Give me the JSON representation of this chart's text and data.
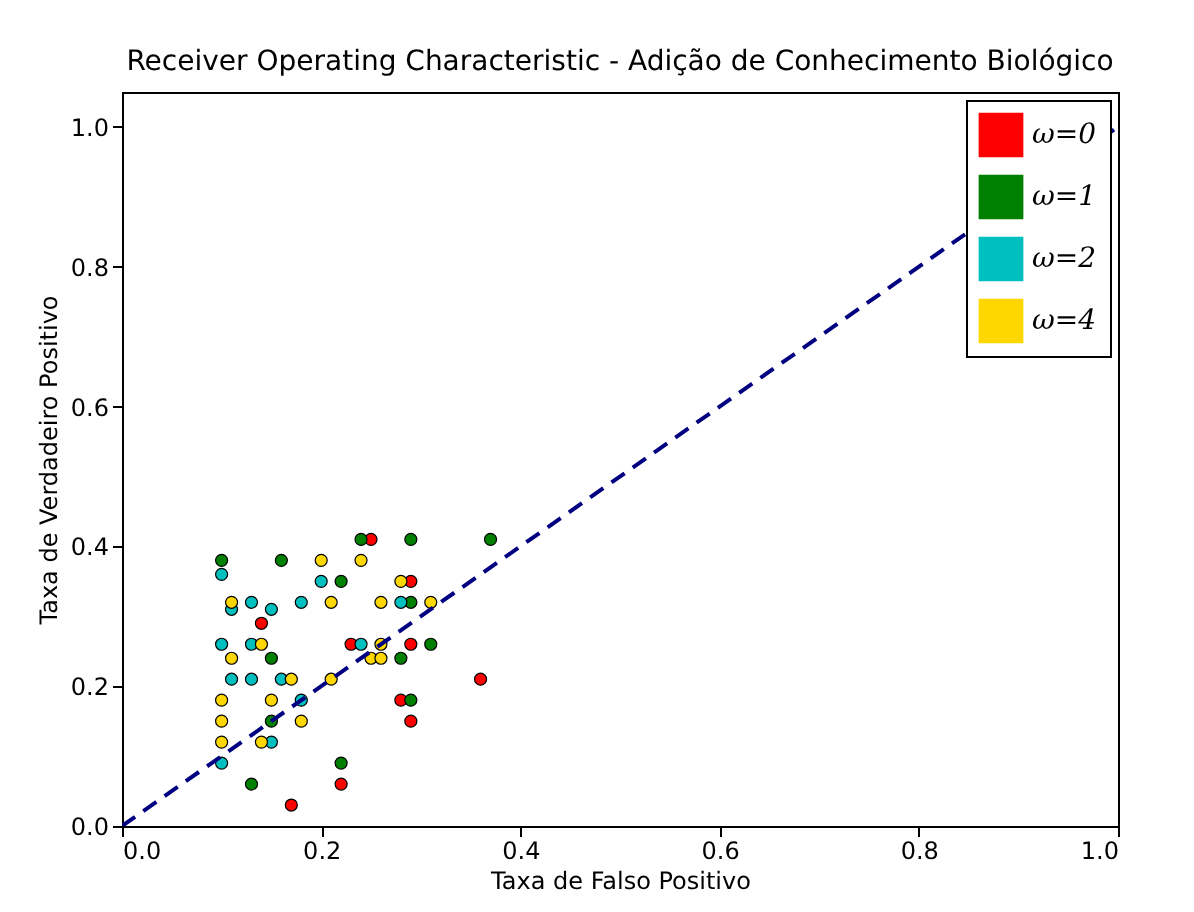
{
  "chart_data": {
    "type": "scatter",
    "title": "Receiver Operating Characteristic - Adição de Conhecimento Biológico",
    "xlabel": "Taxa de Falso Positivo",
    "ylabel": "Taxa de Verdadeiro Positivo",
    "xlim": [
      0,
      1
    ],
    "ylim": [
      0,
      1.05
    ],
    "xticks": [
      {
        "value": 0,
        "label": "0.0"
      },
      0.2,
      0.4,
      0.6,
      0.8,
      {
        "value": 1,
        "label": "1.0"
      }
    ],
    "yticks": [
      {
        "value": 0,
        "label": "0.0"
      },
      0.2,
      0.4,
      0.6,
      0.8,
      {
        "value": 1,
        "label": "1.0"
      }
    ],
    "grid": false,
    "legend": "top right",
    "marker": "circle",
    "series": [
      {
        "name": "ω=0",
        "color": "#ff0000",
        "x": [
          0.25,
          0.14,
          0.23,
          0.17,
          0.22,
          0.29,
          0.29,
          0.36,
          0.28,
          0.29
        ],
        "values": [
          0.41,
          0.29,
          0.26,
          0.03,
          0.06,
          0.35,
          0.26,
          0.21,
          0.18,
          0.15
        ]
      },
      {
        "name": "ω=1",
        "color": "#008000",
        "x": [
          0.24,
          0.1,
          0.16,
          0.22,
          0.15,
          0.15,
          0.22,
          0.13,
          0.29,
          0.37,
          0.29,
          0.31,
          0.28,
          0.29
        ],
        "values": [
          0.41,
          0.38,
          0.38,
          0.35,
          0.24,
          0.15,
          0.09,
          0.06,
          0.41,
          0.41,
          0.32,
          0.26,
          0.24,
          0.18
        ]
      },
      {
        "name": "ω=2",
        "color": "#00bfbf",
        "x": [
          0.1,
          0.2,
          0.11,
          0.13,
          0.15,
          0.18,
          0.1,
          0.13,
          0.24,
          0.11,
          0.13,
          0.16,
          0.18,
          0.15,
          0.1,
          0.28
        ],
        "values": [
          0.36,
          0.35,
          0.31,
          0.32,
          0.31,
          0.32,
          0.26,
          0.26,
          0.26,
          0.21,
          0.21,
          0.21,
          0.18,
          0.12,
          0.09,
          0.32
        ]
      },
      {
        "name": "ω=4",
        "color": "#ffd700",
        "x": [
          0.2,
          0.24,
          0.11,
          0.21,
          0.26,
          0.14,
          0.26,
          0.11,
          0.25,
          0.26,
          0.17,
          0.21,
          0.1,
          0.15,
          0.1,
          0.18,
          0.1,
          0.14,
          0.28,
          0.31
        ],
        "values": [
          0.38,
          0.38,
          0.32,
          0.32,
          0.32,
          0.26,
          0.26,
          0.24,
          0.24,
          0.24,
          0.21,
          0.21,
          0.18,
          0.18,
          0.15,
          0.15,
          0.12,
          0.12,
          0.35,
          0.32
        ]
      },
      {
        "type": "line",
        "color": "#000080",
        "line_style": "dashed",
        "marker": "none",
        "x": [
          0,
          1
        ],
        "values": [
          0,
          1
        ]
      }
    ]
  }
}
